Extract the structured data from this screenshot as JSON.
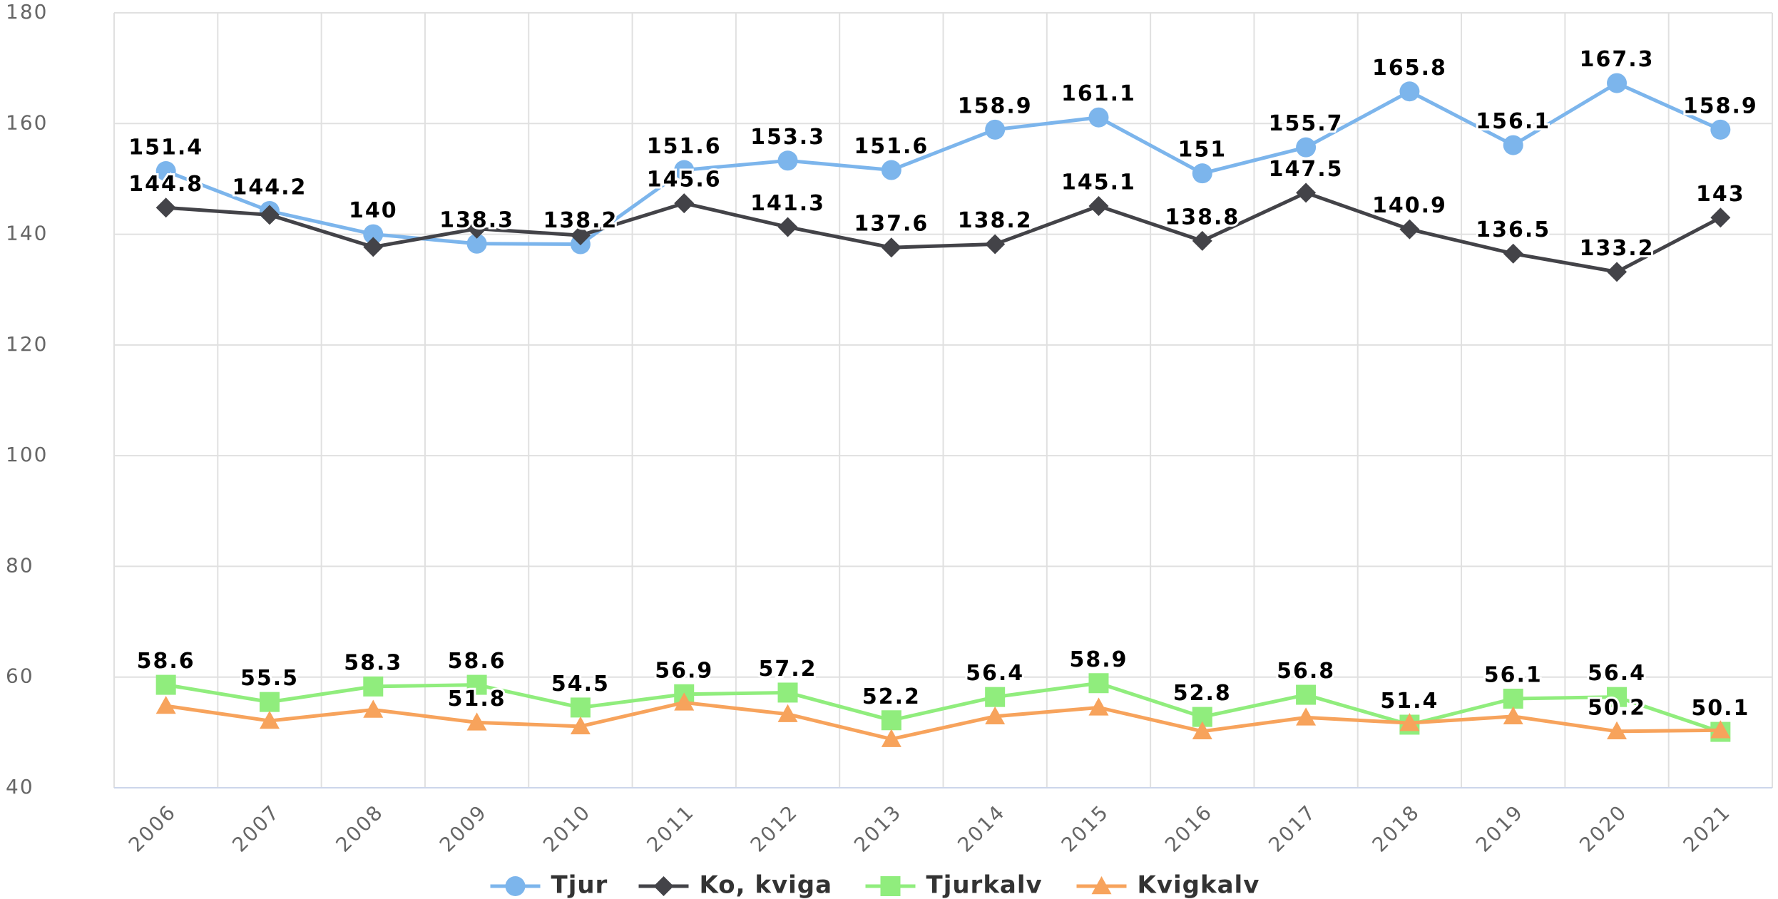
{
  "chart_data": {
    "type": "line",
    "categories": [
      "2006",
      "2007",
      "2008",
      "2009",
      "2010",
      "2011",
      "2012",
      "2013",
      "2014",
      "2015",
      "2016",
      "2017",
      "2018",
      "2019",
      "2020",
      "2021"
    ],
    "ylim": [
      40,
      180
    ],
    "yticks": [
      40,
      60,
      80,
      100,
      120,
      140,
      160,
      180
    ],
    "grid": true,
    "legend": "bottom",
    "series": [
      {
        "name": "Tjur",
        "color": "#7cb5ec",
        "marker": "circle",
        "values": [
          151.4,
          144.2,
          140,
          138.3,
          138.2,
          151.6,
          153.3,
          151.6,
          158.9,
          161.1,
          151,
          155.7,
          165.8,
          156.1,
          167.3,
          158.9
        ],
        "value_labels": [
          "151.4",
          "144.2",
          "140",
          "138.3",
          "138.2",
          "151.6",
          "153.3",
          "151.6",
          "158.9",
          "161.1",
          "151",
          "155.7",
          "165.8",
          "156.1",
          "167.3",
          "158.9"
        ]
      },
      {
        "name": "Ko, kviga",
        "color": "#434348",
        "marker": "diamond",
        "values": [
          144.8,
          143.5,
          137.7,
          141,
          139.8,
          145.6,
          141.3,
          137.6,
          138.2,
          145.1,
          138.8,
          147.5,
          140.9,
          136.5,
          133.2,
          143
        ],
        "value_labels": [
          "144.8",
          null,
          null,
          null,
          null,
          "145.6",
          "141.3",
          "137.6",
          "138.2",
          "145.1",
          "138.8",
          "147.5",
          "140.9",
          "136.5",
          "133.2",
          "143"
        ]
      },
      {
        "name": "Tjurkalv",
        "color": "#90ed7d",
        "marker": "square",
        "values": [
          58.6,
          55.5,
          58.3,
          58.6,
          54.5,
          56.9,
          57.2,
          52.2,
          56.4,
          58.9,
          52.8,
          56.8,
          51.4,
          56.1,
          56.4,
          50.1
        ],
        "value_labels": [
          "58.6",
          "55.5",
          "58.3",
          "58.6",
          "54.5",
          "56.9",
          "57.2",
          "52.2",
          "56.4",
          "58.9",
          "52.8",
          "56.8",
          "51.4",
          "56.1",
          "56.4",
          "50.1"
        ]
      },
      {
        "name": "Kvigkalv",
        "color": "#f7a35c",
        "marker": "triangle",
        "values": [
          54.8,
          52.1,
          54.1,
          51.8,
          51.1,
          55.4,
          53.3,
          48.8,
          52.9,
          54.5,
          50.2,
          52.7,
          51.7,
          52.9,
          50.2,
          50.4
        ],
        "value_labels": [
          null,
          null,
          null,
          "51.8",
          null,
          null,
          null,
          null,
          null,
          null,
          null,
          null,
          null,
          null,
          "50.2",
          null
        ]
      }
    ]
  }
}
